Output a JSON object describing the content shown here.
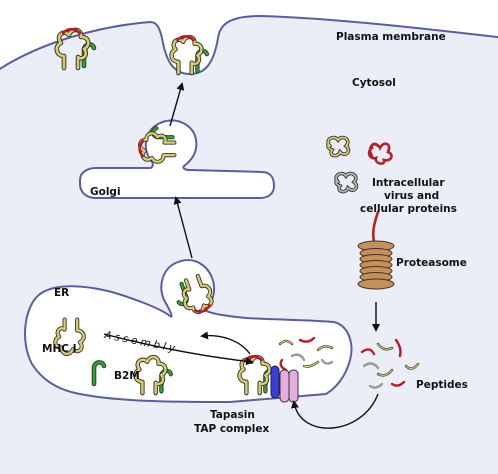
{
  "labels": {
    "plasma_membrane": "Plasma membrane",
    "cytosol": "Cytosol",
    "golgi": "Golgi",
    "er": "ER",
    "mhc1": "MHC I",
    "b2m": "B2M",
    "assembly": "Assembly",
    "intracellular_line1": "Intracellular",
    "intracellular_line2": "virus and",
    "intracellular_line3": "cellular proteins",
    "proteasome": "Proteasome",
    "peptides": "Peptides",
    "tapasin": "Tapasin",
    "tap_complex": "TAP complex"
  },
  "colors": {
    "membrane_stroke": "#5a5f9c",
    "cytosol_fill": "#eceef7",
    "mhc_yellow": "#d8cd71",
    "mhc_outline": "#333333",
    "b2m_green": "#3f9a3c",
    "peptide_red": "#b41f2a",
    "proteasome_tan": "#c2915e",
    "tapasin_blue": "#3b3fd1",
    "tap_pink": "#e6aee0",
    "grey_protein": "#9a9a9a"
  }
}
